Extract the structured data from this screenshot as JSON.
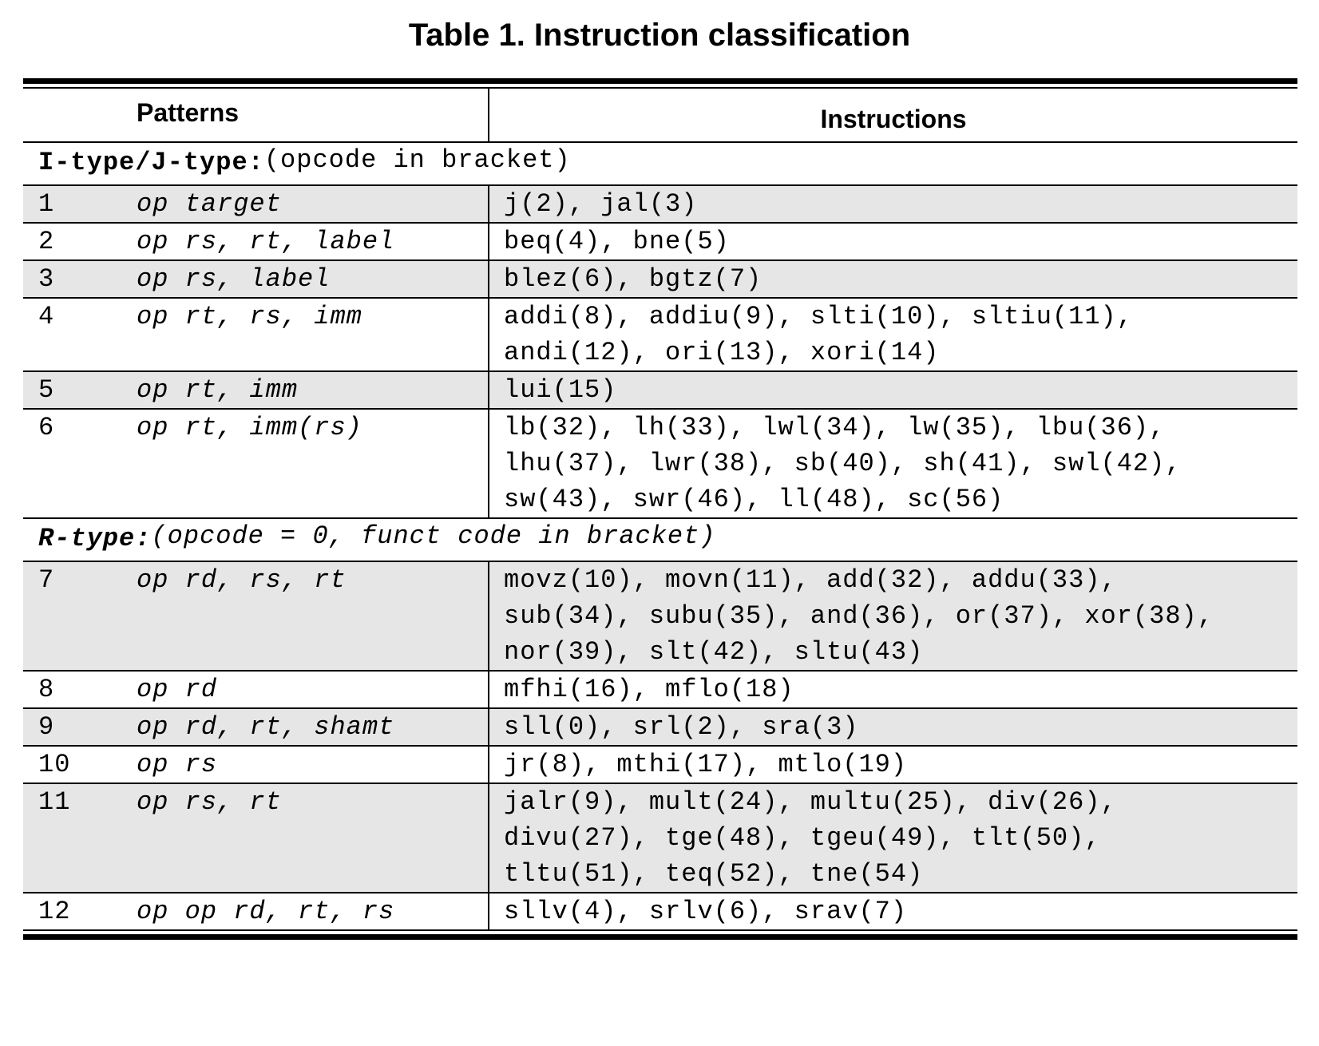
{
  "caption": "Table 1. Instruction classification",
  "headers": {
    "patterns": "Patterns",
    "instructions": "Instructions"
  },
  "sections": [
    {
      "title": "I-type/J-type:",
      "note": "(opcode in bracket)",
      "rows": [
        {
          "num": "1",
          "pattern": "op target",
          "instructions": [
            "j(2), jal(3)"
          ],
          "shaded": true
        },
        {
          "num": "2",
          "pattern": "op rs, rt, label",
          "instructions": [
            "beq(4), bne(5)"
          ],
          "shaded": false
        },
        {
          "num": "3",
          "pattern": "op rs, label",
          "instructions": [
            "blez(6), bgtz(7)"
          ],
          "shaded": true
        },
        {
          "num": "4",
          "pattern": "op rt, rs, imm",
          "instructions": [
            "addi(8), addiu(9), slti(10), sltiu(11),",
            "andi(12), ori(13), xori(14)"
          ],
          "shaded": false
        },
        {
          "num": "5",
          "pattern": "op rt, imm",
          "instructions": [
            "lui(15)"
          ],
          "shaded": true
        },
        {
          "num": "6",
          "pattern": "op rt, imm(rs)",
          "instructions": [
            "lb(32), lh(33), lwl(34), lw(35), lbu(36),",
            "lhu(37), lwr(38), sb(40), sh(41), swl(42),",
            "sw(43), swr(46), ll(48), sc(56)"
          ],
          "shaded": false
        }
      ]
    },
    {
      "title": "R-type:",
      "note": "(opcode = 0, funct code in bracket)",
      "rows": [
        {
          "num": "7",
          "pattern": "op rd, rs, rt",
          "instructions": [
            "movz(10), movn(11), add(32), addu(33),",
            "sub(34), subu(35), and(36), or(37), xor(38),",
            "nor(39), slt(42), sltu(43)"
          ],
          "shaded": true
        },
        {
          "num": "8",
          "pattern": "op rd",
          "instructions": [
            "mfhi(16), mflo(18)"
          ],
          "shaded": false
        },
        {
          "num": "9",
          "pattern": "op rd, rt, shamt",
          "instructions": [
            "sll(0), srl(2), sra(3)"
          ],
          "shaded": true
        },
        {
          "num": "10",
          "pattern": "op rs",
          "instructions": [
            "jr(8), mthi(17), mtlo(19)"
          ],
          "shaded": false
        },
        {
          "num": "11",
          "pattern": "op rs, rt",
          "instructions": [
            "jalr(9), mult(24), multu(25), div(26),",
            "divu(27), tge(48), tgeu(49), tlt(50),",
            "tltu(51), teq(52), tne(54)"
          ],
          "shaded": true
        },
        {
          "num": "12",
          "pattern": "op op rd, rt, rs",
          "instructions": [
            "sllv(4), srlv(6), srav(7)"
          ],
          "shaded": false
        }
      ]
    }
  ]
}
